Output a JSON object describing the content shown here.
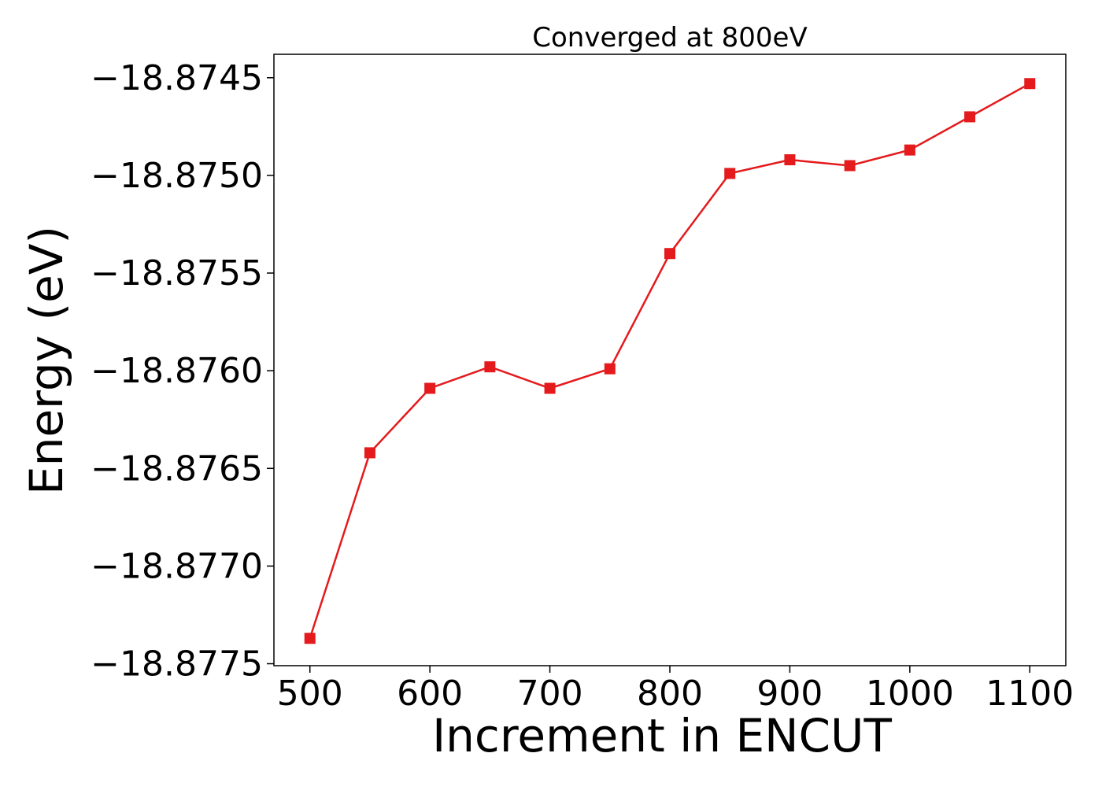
{
  "chart_data": {
    "type": "line",
    "title": "Converged at 800eV",
    "xlabel": "Increment in ENCUT",
    "ylabel": "Energy (eV)",
    "xlim": [
      470,
      1130
    ],
    "ylim": [
      -18.87751,
      -18.87438
    ],
    "x_ticks": [
      500,
      600,
      700,
      800,
      900,
      1000,
      1100
    ],
    "x_tick_labels": [
      "500",
      "600",
      "700",
      "800",
      "900",
      "1000",
      "1100"
    ],
    "y_ticks": [
      -18.8775,
      -18.877,
      -18.8765,
      -18.876,
      -18.8755,
      -18.875,
      -18.8745
    ],
    "y_tick_labels": [
      "−18.8775",
      "−18.8770",
      "−18.8765",
      "−18.8760",
      "−18.8755",
      "−18.8750",
      "−18.8745"
    ],
    "grid": false,
    "legend": "none",
    "marker": "square",
    "color": "#e41a1c",
    "series": [
      {
        "x": [
          500,
          550,
          600,
          650,
          700,
          750,
          800,
          850,
          900,
          950,
          1000,
          1050,
          1100
        ],
        "values": [
          -18.87737,
          -18.87642,
          -18.87609,
          -18.87598,
          -18.87609,
          -18.87599,
          -18.8754,
          -18.87499,
          -18.87492,
          -18.87495,
          -18.87487,
          -18.8747,
          -18.87453
        ]
      }
    ]
  }
}
